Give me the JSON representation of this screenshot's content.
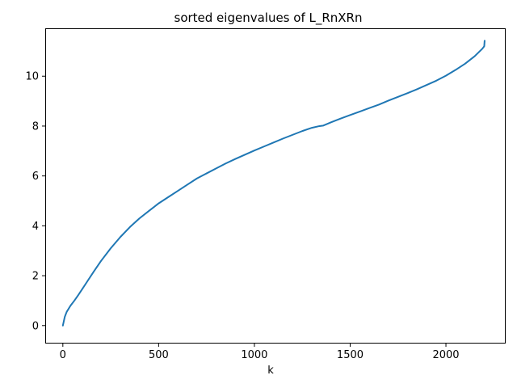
{
  "chart_data": {
    "type": "line",
    "title": "sorted eigenvalues of L_RnXRn",
    "xlabel": "k",
    "ylabel": "",
    "xlim": [
      -92,
      2312
    ],
    "ylim": [
      -0.72,
      11.92
    ],
    "xticks": [
      0,
      500,
      1000,
      1500,
      2000
    ],
    "yticks": [
      0,
      2,
      4,
      6,
      8,
      10
    ],
    "grid": false,
    "legend": "none",
    "line_color": "#1f77b4",
    "series": [
      {
        "x": [
          0,
          10,
          20,
          40,
          60,
          80,
          100,
          130,
          160,
          200,
          250,
          300,
          350,
          400,
          450,
          500,
          550,
          600,
          650,
          700,
          750,
          800,
          850,
          900,
          950,
          1000,
          1050,
          1100,
          1150,
          1200,
          1250,
          1300,
          1340,
          1360,
          1400,
          1450,
          1500,
          1550,
          1600,
          1650,
          1700,
          1750,
          1800,
          1850,
          1900,
          1950,
          2000,
          2050,
          2100,
          2150,
          2170,
          2190,
          2200,
          2202
        ],
        "values": [
          0.0,
          0.35,
          0.55,
          0.8,
          1.0,
          1.22,
          1.45,
          1.8,
          2.15,
          2.6,
          3.1,
          3.55,
          3.95,
          4.3,
          4.6,
          4.9,
          5.15,
          5.4,
          5.65,
          5.9,
          6.1,
          6.3,
          6.5,
          6.68,
          6.85,
          7.02,
          7.18,
          7.34,
          7.5,
          7.65,
          7.8,
          7.93,
          8.0,
          8.02,
          8.15,
          8.3,
          8.44,
          8.58,
          8.72,
          8.86,
          9.02,
          9.17,
          9.32,
          9.48,
          9.65,
          9.82,
          10.02,
          10.25,
          10.5,
          10.8,
          10.95,
          11.1,
          11.2,
          11.42
        ]
      }
    ]
  }
}
